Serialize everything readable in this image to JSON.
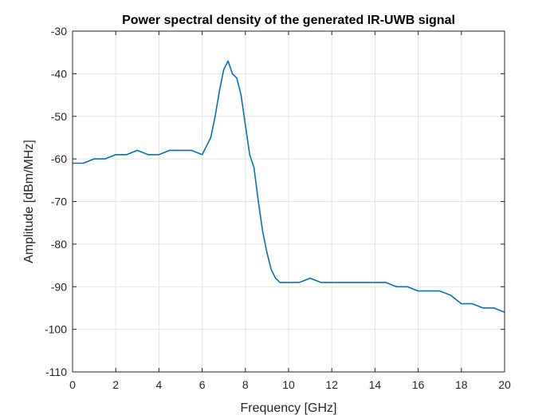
{
  "chart_data": {
    "type": "line",
    "title": "Power spectral density of the generated IR-UWB signal",
    "xlabel": "Frequency [GHz]",
    "ylabel": "Amplitude [dBm/MHz]",
    "xlim": [
      0,
      20
    ],
    "ylim": [
      -110,
      -30
    ],
    "xticks": [
      0,
      2,
      4,
      6,
      8,
      10,
      12,
      14,
      16,
      18,
      20
    ],
    "yticks": [
      -110,
      -100,
      -90,
      -80,
      -70,
      -60,
      -50,
      -40,
      -30
    ],
    "grid": true,
    "line_color": "#0072bd",
    "series": [
      {
        "x": [
          0,
          0.5,
          1,
          1.5,
          2,
          2.5,
          3,
          3.5,
          4,
          4.5,
          5,
          5.5,
          6,
          6.4,
          6.6,
          6.8,
          7,
          7.2,
          7.4,
          7.6,
          7.8,
          8,
          8.2,
          8.4,
          8.6,
          8.8,
          9,
          9.2,
          9.4,
          9.6,
          9.8,
          10,
          10.5,
          11,
          11.5,
          12,
          12.5,
          13,
          13.5,
          14,
          14.5,
          15,
          15.5,
          16,
          16.5,
          17,
          17.5,
          18,
          18.5,
          19,
          19.5,
          20
        ],
        "values": [
          -61,
          -61,
          -60,
          -60,
          -59,
          -59,
          -58,
          -59,
          -59,
          -58,
          -58,
          -58,
          -59,
          -55,
          -50,
          -44,
          -39,
          -37,
          -40,
          -41,
          -45,
          -52,
          -59,
          -62,
          -70,
          -77,
          -82,
          -86,
          -88,
          -89,
          -89,
          -89,
          -89,
          -88,
          -89,
          -89,
          -89,
          -89,
          -89,
          -89,
          -89,
          -90,
          -90,
          -91,
          -91,
          -91,
          -92,
          -94,
          -94,
          -95,
          -95,
          -96
        ]
      }
    ]
  }
}
